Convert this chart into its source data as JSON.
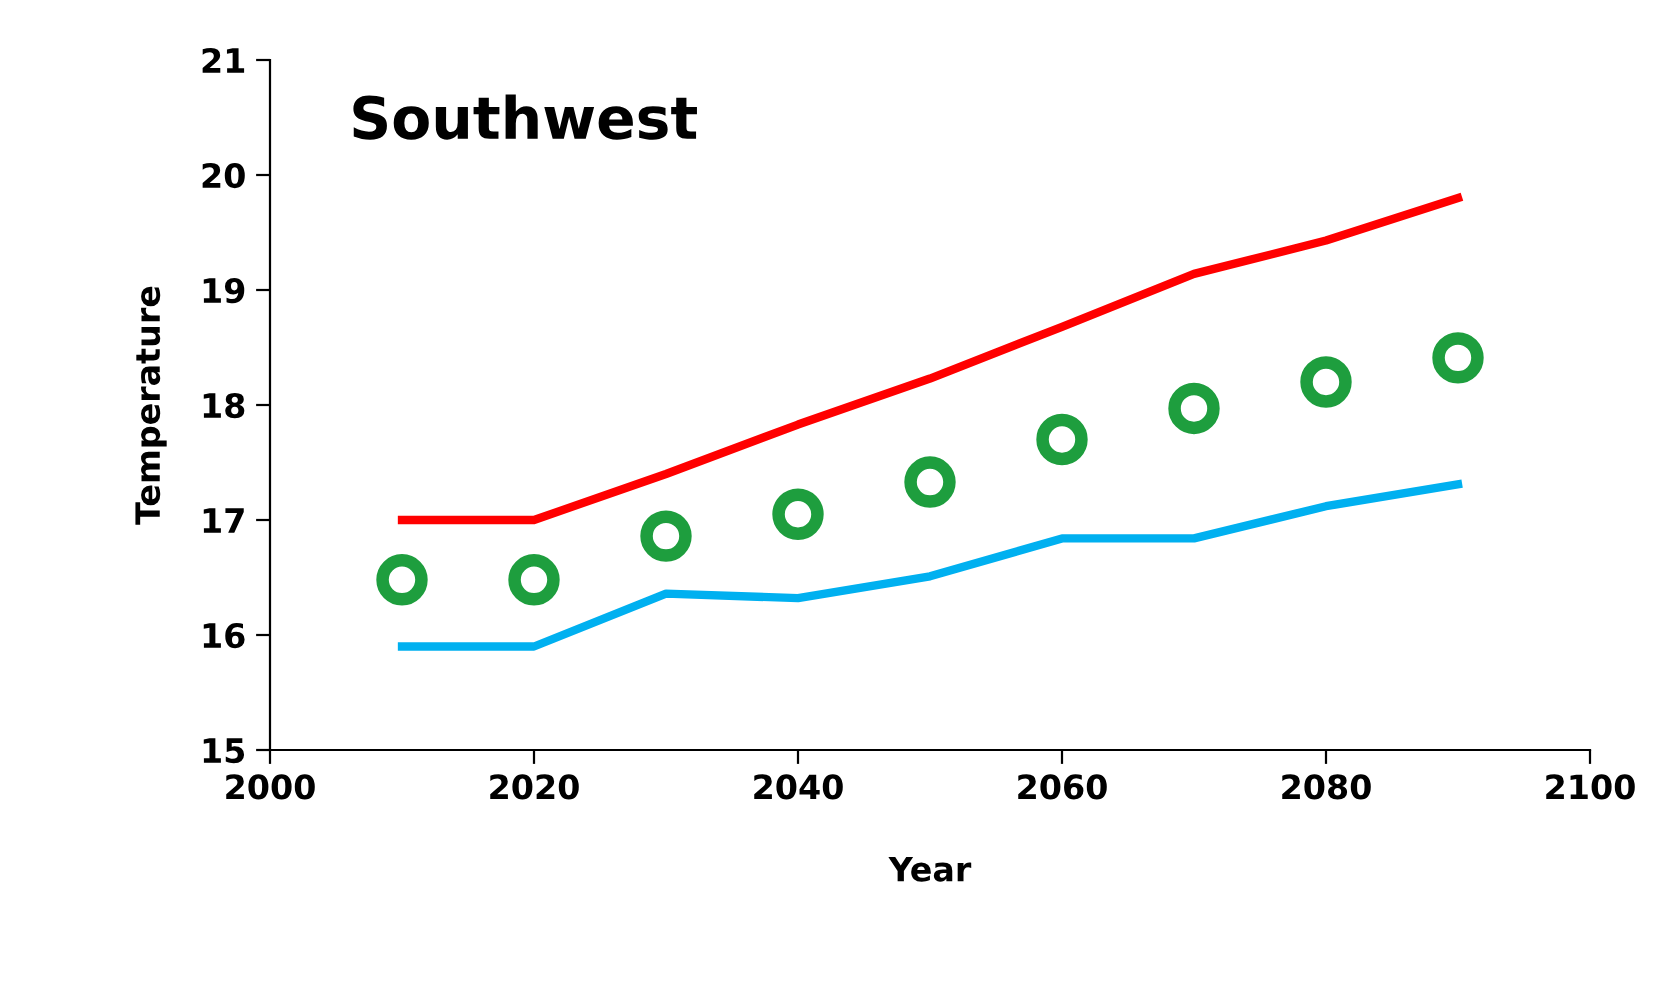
{
  "chart_data": {
    "type": "line",
    "title": "Southwest",
    "xlabel": "Year",
    "ylabel": "Temperature",
    "x": [
      2010,
      2020,
      2030,
      2040,
      2050,
      2060,
      2070,
      2080,
      2090
    ],
    "series": [
      {
        "color": "#ff0000",
        "values": [
          17.0,
          17.0,
          17.4,
          17.83,
          18.23,
          18.68,
          19.14,
          19.43,
          19.8
        ]
      },
      {
        "color": "#00b0f0",
        "values": [
          15.9,
          15.9,
          16.36,
          16.32,
          16.51,
          16.84,
          16.84,
          17.12,
          17.31
        ]
      },
      {
        "type": "scatter",
        "marker": "circle",
        "color": "#1e9e3e",
        "values": [
          16.48,
          16.48,
          16.86,
          17.05,
          17.33,
          17.7,
          17.97,
          18.2,
          18.41
        ]
      }
    ],
    "xlim": [
      2000,
      2100
    ],
    "xticks": [
      2000,
      2020,
      2040,
      2060,
      2080,
      2100
    ],
    "ylim": [
      15,
      21
    ],
    "yticks": [
      15,
      16,
      17,
      18,
      19,
      20,
      21
    ],
    "grid": false,
    "legend": false
  }
}
